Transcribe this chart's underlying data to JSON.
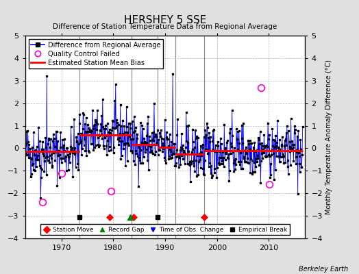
{
  "title": "HERSHEY 5 SSE",
  "subtitle": "Difference of Station Temperature Data from Regional Average",
  "ylabel_right": "Monthly Temperature Anomaly Difference (°C)",
  "credit": "Berkeley Earth",
  "xlim": [
    1963,
    2017
  ],
  "ylim": [
    -4,
    5
  ],
  "yticks": [
    -4,
    -3,
    -2,
    -1,
    0,
    1,
    2,
    3,
    4,
    5
  ],
  "xticks": [
    1970,
    1980,
    1990,
    2000,
    2010
  ],
  "background_color": "#e0e0e0",
  "plot_bg_color": "#ffffff",
  "seed": 42,
  "bias_segments": [
    {
      "x_start": 1963.0,
      "x_end": 1973.5,
      "bias": -0.15
    },
    {
      "x_start": 1973.5,
      "x_end": 1983.5,
      "bias": 0.6
    },
    {
      "x_start": 1983.5,
      "x_end": 1988.5,
      "bias": 0.18
    },
    {
      "x_start": 1988.5,
      "x_end": 1992.0,
      "bias": 0.05
    },
    {
      "x_start": 1992.0,
      "x_end": 1997.5,
      "bias": -0.25
    },
    {
      "x_start": 1997.5,
      "x_end": 2016.5,
      "bias": -0.1
    }
  ],
  "vertical_lines": [
    1973.5,
    1983.5,
    1988.5,
    1992.0,
    1997.5
  ],
  "station_moves": [
    1979.3,
    1983.9,
    1997.5
  ],
  "record_gaps": [
    1983.3
  ],
  "obs_changes": [],
  "empirical_breaks": [
    1973.5,
    1988.5
  ],
  "qc_failed_years": [
    1966.3,
    1970.0,
    1979.5,
    2008.5,
    2010.1
  ],
  "qc_failed_vals": [
    -2.4,
    -1.1,
    -1.9,
    2.7,
    -1.6
  ],
  "marker_y": -3.05,
  "notable_spikes": [
    {
      "year": 1991.5,
      "val": 3.3
    },
    {
      "year": 1967.2,
      "val": 3.2
    },
    {
      "year": 1966.0,
      "val": -2.2
    }
  ]
}
